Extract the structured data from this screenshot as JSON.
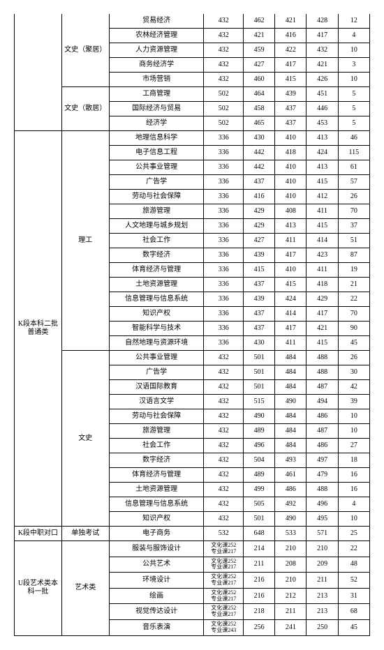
{
  "sections": [
    {
      "cat1": "",
      "cat1_rows": 8,
      "cat1_no_top": true,
      "groups": [
        {
          "cat2": "文史（聚居）",
          "cat2_rows": 5,
          "rows": [
            {
              "major": "贸易经济",
              "c4": "432",
              "c5": "462",
              "c6": "421",
              "c7": "428",
              "c8": "12"
            },
            {
              "major": "农林经济管理",
              "c4": "432",
              "c5": "421",
              "c6": "416",
              "c7": "417",
              "c8": "4"
            },
            {
              "major": "人力资源管理",
              "c4": "432",
              "c5": "459",
              "c6": "422",
              "c7": "432",
              "c8": "10"
            },
            {
              "major": "商务经济学",
              "c4": "432",
              "c5": "427",
              "c6": "417",
              "c7": "421",
              "c8": "3"
            },
            {
              "major": "市场营销",
              "c4": "432",
              "c5": "460",
              "c6": "415",
              "c7": "426",
              "c8": "10"
            }
          ]
        },
        {
          "cat2": "文史（散居）",
          "cat2_rows": 3,
          "rows": [
            {
              "major": "工商管理",
              "c4": "502",
              "c5": "464",
              "c6": "439",
              "c7": "451",
              "c8": "5"
            },
            {
              "major": "国际经济与贸易",
              "c4": "502",
              "c5": "458",
              "c6": "437",
              "c7": "446",
              "c8": "5"
            },
            {
              "major": "经济学",
              "c4": "502",
              "c5": "465",
              "c6": "437",
              "c7": "453",
              "c8": "5"
            }
          ]
        }
      ]
    },
    {
      "cat1": "K段本科二批普通类",
      "cat1_rows": 27,
      "groups": [
        {
          "cat2": "理工",
          "cat2_rows": 15,
          "rows": [
            {
              "major": "地理信息科学",
              "c4": "336",
              "c5": "430",
              "c6": "410",
              "c7": "413",
              "c8": "46"
            },
            {
              "major": "电子信息工程",
              "c4": "336",
              "c5": "442",
              "c6": "418",
              "c7": "424",
              "c8": "115"
            },
            {
              "major": "公共事业管理",
              "c4": "336",
              "c5": "442",
              "c6": "410",
              "c7": "413",
              "c8": "61"
            },
            {
              "major": "广告学",
              "c4": "336",
              "c5": "437",
              "c6": "410",
              "c7": "415",
              "c8": "57"
            },
            {
              "major": "劳动与社会保障",
              "c4": "336",
              "c5": "416",
              "c6": "410",
              "c7": "412",
              "c8": "26"
            },
            {
              "major": "旅游管理",
              "c4": "336",
              "c5": "429",
              "c6": "408",
              "c7": "411",
              "c8": "70"
            },
            {
              "major": "人文地理与城乡规划",
              "c4": "336",
              "c5": "429",
              "c6": "413",
              "c7": "415",
              "c8": "37"
            },
            {
              "major": "社会工作",
              "c4": "336",
              "c5": "427",
              "c6": "411",
              "c7": "414",
              "c8": "51"
            },
            {
              "major": "数字经济",
              "c4": "336",
              "c5": "439",
              "c6": "417",
              "c7": "423",
              "c8": "87"
            },
            {
              "major": "体育经济与管理",
              "c4": "336",
              "c5": "415",
              "c6": "410",
              "c7": "411",
              "c8": "19"
            },
            {
              "major": "土地资源管理",
              "c4": "336",
              "c5": "437",
              "c6": "415",
              "c7": "418",
              "c8": "21"
            },
            {
              "major": "信息管理与信息系统",
              "c4": "336",
              "c5": "439",
              "c6": "424",
              "c7": "429",
              "c8": "22"
            },
            {
              "major": "知识产权",
              "c4": "336",
              "c5": "437",
              "c6": "414",
              "c7": "417",
              "c8": "70"
            },
            {
              "major": "智能科学与技术",
              "c4": "336",
              "c5": "437",
              "c6": "417",
              "c7": "421",
              "c8": "90"
            },
            {
              "major": "自然地理与资源环境",
              "c4": "336",
              "c5": "430",
              "c6": "411",
              "c7": "415",
              "c8": "45"
            }
          ]
        },
        {
          "cat2": "文史",
          "cat2_rows": 12,
          "rows": [
            {
              "major": "公共事业管理",
              "c4": "432",
              "c5": "501",
              "c6": "484",
              "c7": "488",
              "c8": "26"
            },
            {
              "major": "广告学",
              "c4": "432",
              "c5": "501",
              "c6": "484",
              "c7": "488",
              "c8": "30"
            },
            {
              "major": "汉语国际教育",
              "c4": "432",
              "c5": "501",
              "c6": "484",
              "c7": "487",
              "c8": "42"
            },
            {
              "major": "汉语言文学",
              "c4": "432",
              "c5": "515",
              "c6": "490",
              "c7": "494",
              "c8": "39"
            },
            {
              "major": "劳动与社会保障",
              "c4": "432",
              "c5": "490",
              "c6": "484",
              "c7": "486",
              "c8": "10"
            },
            {
              "major": "旅游管理",
              "c4": "432",
              "c5": "489",
              "c6": "484",
              "c7": "487",
              "c8": "10"
            },
            {
              "major": "社会工作",
              "c4": "432",
              "c5": "496",
              "c6": "484",
              "c7": "486",
              "c8": "27"
            },
            {
              "major": "数字经济",
              "c4": "432",
              "c5": "504",
              "c6": "493",
              "c7": "497",
              "c8": "18"
            },
            {
              "major": "体育经济与管理",
              "c4": "432",
              "c5": "489",
              "c6": "461",
              "c7": "479",
              "c8": "16"
            },
            {
              "major": "土地资源管理",
              "c4": "432",
              "c5": "499",
              "c6": "486",
              "c7": "488",
              "c8": "16"
            },
            {
              "major": "信息管理与信息系统",
              "c4": "432",
              "c5": "505",
              "c6": "492",
              "c7": "496",
              "c8": "4"
            },
            {
              "major": "知识产权",
              "c4": "432",
              "c5": "501",
              "c6": "490",
              "c7": "495",
              "c8": "10"
            }
          ]
        }
      ]
    },
    {
      "cat1": "K段中职对口",
      "cat1_rows": 1,
      "groups": [
        {
          "cat2": "单独考试",
          "cat2_rows": 1,
          "rows": [
            {
              "major": "电子商务",
              "c4": "532",
              "c5": "648",
              "c6": "533",
              "c7": "571",
              "c8": "25"
            }
          ]
        }
      ]
    },
    {
      "cat1": "U段艺术类本科一批",
      "cat1_rows": 6,
      "groups": [
        {
          "cat2": "艺术类",
          "cat2_rows": 6,
          "rows": [
            {
              "major": "服装与服饰设计",
              "c4": "文化课252\n专业课217",
              "c5": "214",
              "c6": "210",
              "c7": "210",
              "c8": "22",
              "two": true
            },
            {
              "major": "公共艺术",
              "c4": "文化课252\n专业课217",
              "c5": "211",
              "c6": "208",
              "c7": "209",
              "c8": "48",
              "two": true
            },
            {
              "major": "环境设计",
              "c4": "文化课252\n专业课217",
              "c5": "216",
              "c6": "210",
              "c7": "211",
              "c8": "52",
              "two": true
            },
            {
              "major": "绘画",
              "c4": "文化课252\n专业课217",
              "c5": "216",
              "c6": "212",
              "c7": "213",
              "c8": "31",
              "two": true
            },
            {
              "major": "视觉传达设计",
              "c4": "文化课252\n专业课217",
              "c5": "218",
              "c6": "211",
              "c7": "213",
              "c8": "68",
              "two": true
            },
            {
              "major": "音乐表演",
              "c4": "文化课252\n专业课243",
              "c5": "256",
              "c6": "241",
              "c7": "250",
              "c8": "45",
              "two": true
            }
          ]
        }
      ]
    }
  ]
}
